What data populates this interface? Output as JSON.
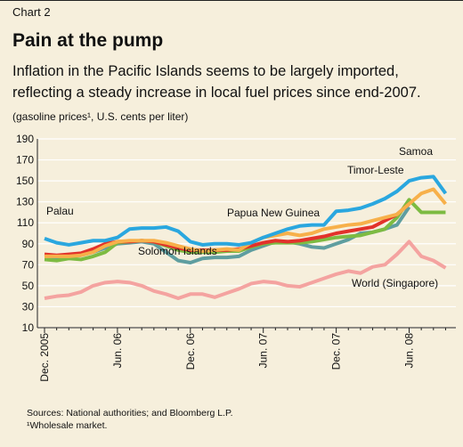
{
  "chart_label": "Chart 2",
  "chart_data": {
    "type": "line",
    "title": "Pain at the pump",
    "subtitle": "Inflation in the Pacific Islands seems to be largely imported, reflecting a steady increase in local fuel prices since end-2007.",
    "y_axis_label": "(gasoline prices¹, U.S. cents per liter)",
    "categories": [
      "Dec. 2005",
      null,
      null,
      null,
      null,
      null,
      "Jun. 06",
      null,
      null,
      null,
      null,
      null,
      "Dec. 06",
      null,
      null,
      null,
      null,
      null,
      "Jun. 07",
      null,
      null,
      null,
      null,
      null,
      "Dec. 07",
      null,
      null,
      null,
      null,
      null,
      "Jun. 08",
      null,
      null,
      null
    ],
    "ylim": [
      10,
      190
    ],
    "yticks": [
      10,
      30,
      50,
      70,
      90,
      110,
      130,
      150,
      170,
      190
    ],
    "grid": true,
    "series": [
      {
        "name": "World (Singapore)",
        "color": "#f4a3a0",
        "values": [
          38,
          40,
          41,
          44,
          50,
          53,
          54,
          53,
          50,
          45,
          42,
          38,
          42,
          42,
          39,
          43,
          47,
          52,
          54,
          53,
          50,
          49,
          53,
          57,
          61,
          64,
          62,
          68,
          70,
          80,
          92,
          78,
          74,
          67
        ]
      },
      {
        "name": "Solomon Islands",
        "color": "#5f9ea0",
        "values": [
          77,
          77,
          78,
          79,
          82,
          86,
          90,
          91,
          92,
          90,
          82,
          74,
          72,
          76,
          77,
          77,
          78,
          84,
          88,
          92,
          92,
          90,
          87,
          86,
          90,
          94,
          100,
          101,
          104,
          108,
          125,
          null,
          null,
          null
        ]
      },
      {
        "name": "Timor-Leste",
        "color": "#7dbb42",
        "values": [
          75,
          74,
          76,
          75,
          78,
          82,
          91,
          92,
          93,
          92,
          88,
          84,
          82,
          82,
          82,
          83,
          83,
          87,
          90,
          91,
          91,
          91,
          92,
          94,
          96,
          97,
          98,
          101,
          104,
          115,
          132,
          120,
          120,
          120
        ]
      },
      {
        "name": "Papua New Guinea",
        "color": "#e2322b",
        "values": [
          80,
          79,
          80,
          81,
          85,
          90,
          92,
          92,
          93,
          92,
          89,
          86,
          84,
          84,
          84,
          84,
          85,
          88,
          91,
          93,
          92,
          93,
          95,
          97,
          100,
          102,
          104,
          106,
          112,
          118,
          128,
          null,
          null,
          null
        ]
      },
      {
        "name": "Samoa",
        "color": "#f7b04a",
        "values": [
          78,
          78,
          78,
          79,
          82,
          88,
          92,
          93,
          93,
          93,
          91,
          88,
          85,
          83,
          84,
          85,
          84,
          91,
          96,
          98,
          100,
          98,
          100,
          104,
          106,
          108,
          109,
          112,
          115,
          118,
          128,
          138,
          142,
          128
        ]
      },
      {
        "name": "Palau",
        "color": "#2aa7df",
        "values": [
          95,
          91,
          89,
          91,
          93,
          93,
          96,
          104,
          105,
          105,
          106,
          102,
          92,
          89,
          90,
          90,
          89,
          91,
          96,
          100,
          104,
          107,
          108,
          108,
          121,
          122,
          124,
          128,
          133,
          140,
          150,
          153,
          154,
          138
        ]
      }
    ],
    "notes": [
      "Sources: National authorities; and Bloomberg L.P.",
      "¹Wholesale market."
    ]
  }
}
